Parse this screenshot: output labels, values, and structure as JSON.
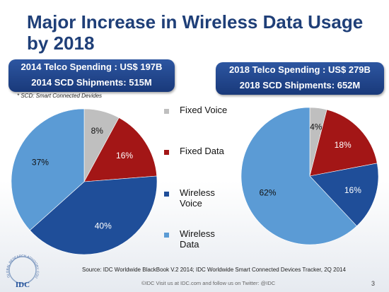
{
  "title": "Major Increase in Wireless Data Usage by 2018",
  "banner_left": {
    "line1": "2014 Telco Spending :  US$ 197B",
    "line2": "2014 SCD Shipments: 515M"
  },
  "banner_right": {
    "line1": "2018 Telco Spending :  US$ 279B",
    "line2": "2018 SCD Shipments: 652M"
  },
  "footnote": "* SCD: Smart Connected Devides",
  "colors": {
    "fixed_voice": "#bfbfbf",
    "fixed_data": "#a31616",
    "wireless_voice": "#1f4e99",
    "wireless_data": "#5b9bd5",
    "title": "#1f3f78"
  },
  "chart_data": [
    {
      "type": "pie",
      "categories": [
        "Fixed Voice",
        "Fixed Data",
        "Wireless Voice",
        "Wireless Data"
      ],
      "values": [
        8,
        16,
        40,
        37
      ],
      "labels": [
        "8%",
        "16%",
        "40%",
        "37%"
      ]
    },
    {
      "type": "pie",
      "categories": [
        "Fixed Voice",
        "Fixed Data",
        "Wireless Voice",
        "Wireless Data"
      ],
      "values": [
        4,
        18,
        16,
        62
      ],
      "labels": [
        "4%",
        "18%",
        "16%",
        "62%"
      ]
    }
  ],
  "legend": {
    "items": [
      {
        "label": "Fixed Voice",
        "color": "#bfbfbf"
      },
      {
        "label": "Fixed Data",
        "color": "#a31616"
      },
      {
        "label": "Wireless Voice",
        "color": "#1f4e99"
      },
      {
        "label": "Wireless Data",
        "color": "#5b9bd5"
      }
    ]
  },
  "source": "Source: IDC Worldwide BlackBook V.2 2014; IDC Worldwide Smart Connected Devices Tracker, 2Q 2014",
  "copyright": "©IDC   Visit us at IDC.com and follow us on Twitter: @IDC",
  "page_number": "3",
  "logo": {
    "ring_text": "GLOBAL RESEARCH ADVISORY COUNCIL",
    "brand": "IDC"
  }
}
